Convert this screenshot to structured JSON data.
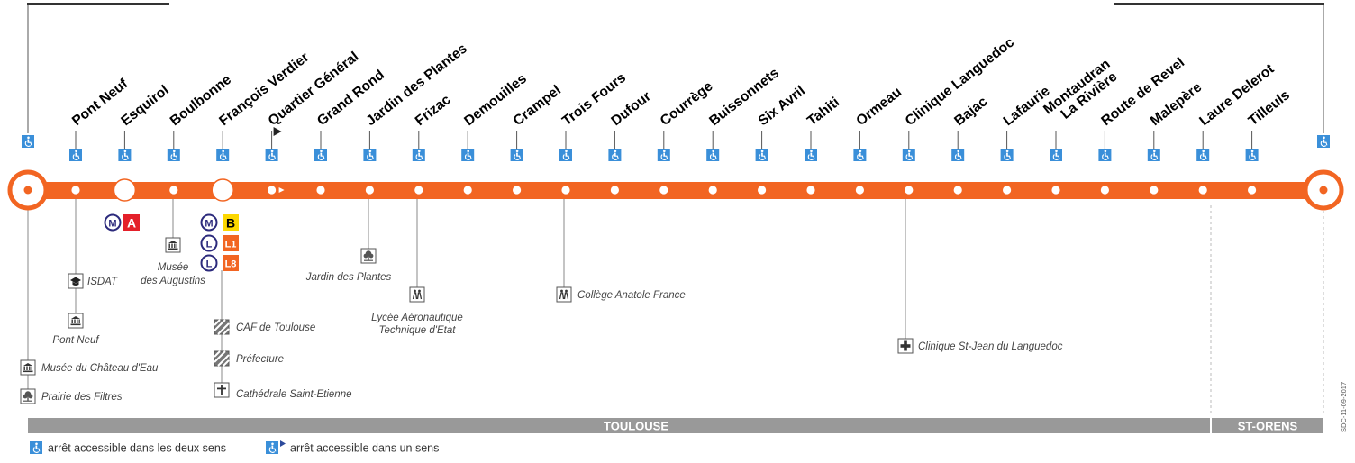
{
  "line": {
    "color": "#f26522"
  },
  "stops": [
    {
      "name": "",
      "wheelchair": true
    },
    {
      "name": "Pont Neuf",
      "wheelchair": true
    },
    {
      "name": "Esquirol",
      "wheelchair": true,
      "interchange": true
    },
    {
      "name": "Boulbonne",
      "wheelchair": true
    },
    {
      "name": "François Verdier",
      "wheelchair": true,
      "interchange": true
    },
    {
      "name": "Quartier Général",
      "wheelchair": true,
      "one_direction": true
    },
    {
      "name": "Grand Rond",
      "wheelchair": true
    },
    {
      "name": "Jardin des Plantes",
      "wheelchair": true
    },
    {
      "name": "Frizac",
      "wheelchair": true
    },
    {
      "name": "Demouilles",
      "wheelchair": true
    },
    {
      "name": "Crampel",
      "wheelchair": true
    },
    {
      "name": "Trois Fours",
      "wheelchair": true
    },
    {
      "name": "Dufour",
      "wheelchair": true
    },
    {
      "name": "Courrège",
      "wheelchair": true
    },
    {
      "name": "Buissonnets",
      "wheelchair": true
    },
    {
      "name": "Six Avril",
      "wheelchair": true
    },
    {
      "name": "Tahiti",
      "wheelchair": true
    },
    {
      "name": "Ormeau",
      "wheelchair": true
    },
    {
      "name": "Clinique Languedoc",
      "wheelchair": true
    },
    {
      "name": "Bajac",
      "wheelchair": true
    },
    {
      "name": "Lafaurie",
      "wheelchair": true
    },
    {
      "name": "Montaudran La Rivière",
      "wheelchair": true
    },
    {
      "name": "Route de Revel",
      "wheelchair": true
    },
    {
      "name": "Malepère",
      "wheelchair": true
    },
    {
      "name": "Laure Delerot",
      "wheelchair": true
    },
    {
      "name": "Tilleuls",
      "wheelchair": true
    },
    {
      "name": "",
      "wheelchair": true
    }
  ],
  "connections": {
    "esquirol": [
      {
        "type": "metro",
        "symbol": "M",
        "line": "A",
        "color": "#e4202a",
        "text_color": "#ffffff"
      }
    ],
    "francois_verdier": [
      {
        "type": "metro",
        "symbol": "M",
        "line": "B",
        "color": "#fcd700",
        "text_color": "#000000"
      },
      {
        "type": "linibus",
        "symbol": "L",
        "line": "L1",
        "color": "#f26522",
        "text_color": "#ffffff"
      },
      {
        "type": "linibus",
        "symbol": "L",
        "line": "L8",
        "color": "#f26522",
        "text_color": "#ffffff"
      }
    ]
  },
  "pois": [
    {
      "name": "ISDAT",
      "icon": "graduation-cap-icon"
    },
    {
      "name": "Pont Neuf",
      "icon": "museum-icon"
    },
    {
      "name": "Musée du Château d'Eau",
      "icon": "museum-icon"
    },
    {
      "name": "Prairie des Filtres",
      "icon": "park-tree-icon"
    },
    {
      "name": "Musée",
      "icon": "museum-icon"
    },
    {
      "name": "des Augustins",
      "icon": ""
    },
    {
      "name": "CAF de Toulouse",
      "icon": "public-building-icon"
    },
    {
      "name": "Préfecture",
      "icon": "public-building-icon"
    },
    {
      "name": "Cathédrale Saint-Etienne",
      "icon": "church-cross-icon"
    },
    {
      "name": "Jardin des Plantes",
      "icon": "park-tree-icon"
    },
    {
      "name": "Lycée Aéronautique",
      "icon": "school-children-icon"
    },
    {
      "name": "Technique d'Etat",
      "icon": ""
    },
    {
      "name": "Collège Anatole France",
      "icon": "school-children-icon"
    },
    {
      "name": "Clinique St-Jean du Languedoc",
      "icon": "hospital-cross-icon"
    }
  ],
  "zones": [
    {
      "name": "TOULOUSE"
    },
    {
      "name": "ST-ORENS"
    }
  ],
  "legend": {
    "both_directions": "arrêt accessible dans les deux sens",
    "one_direction": "arrêt accessible dans un sens"
  },
  "doc_code": "SDC-11-09-2017",
  "colors": {
    "accessibility": "#3a8fd9",
    "zone_bar": "#999999",
    "poi_line": "#888888"
  }
}
